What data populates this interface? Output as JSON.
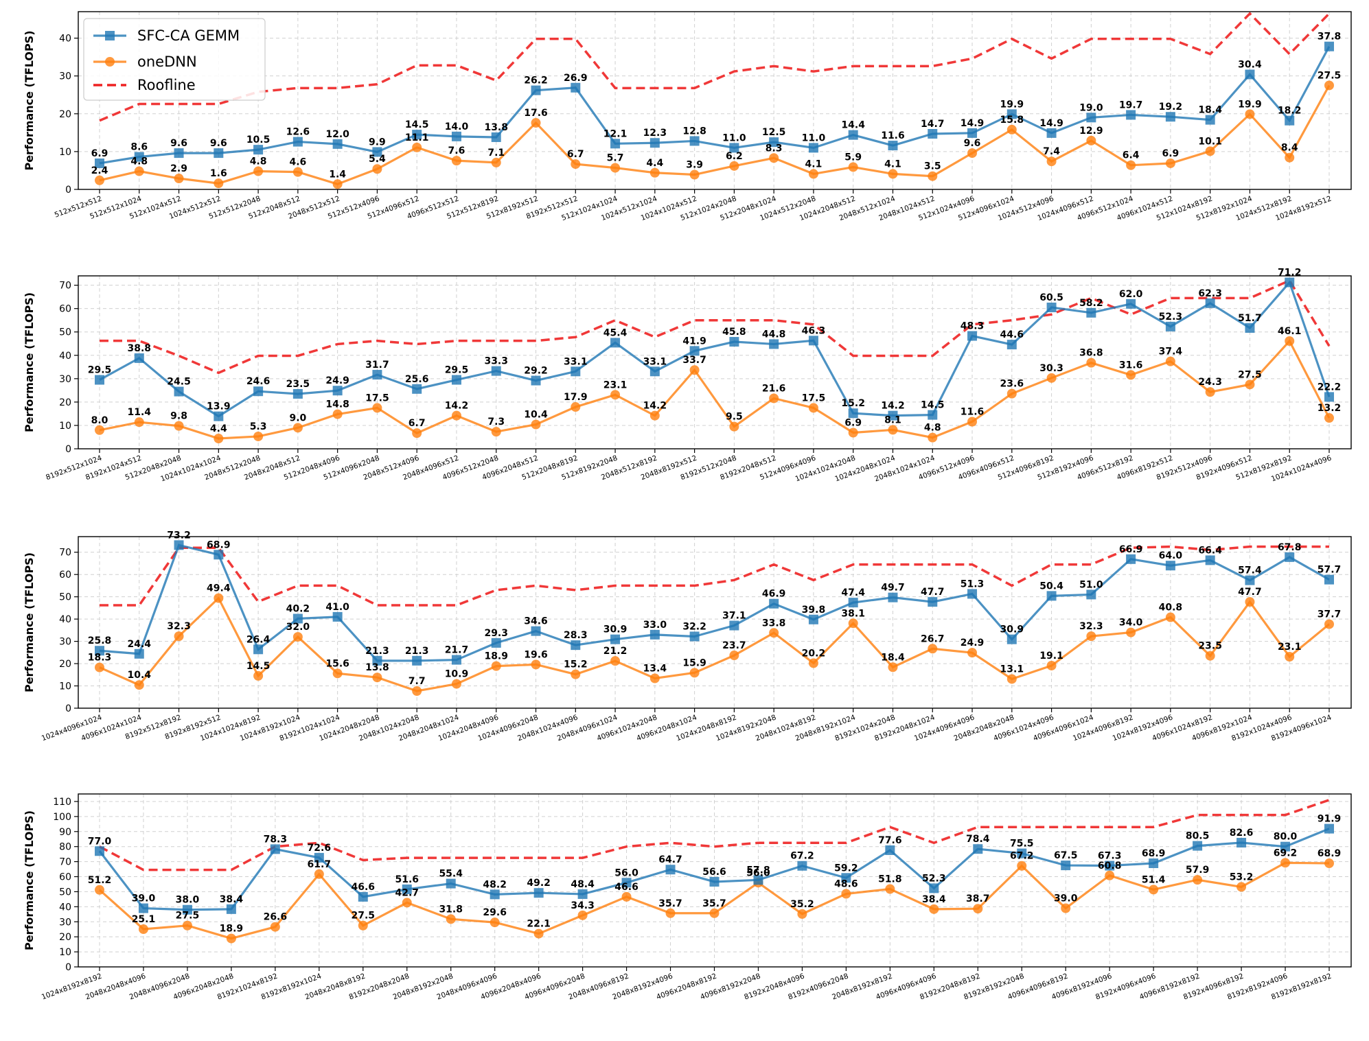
{
  "chart_data": [
    {
      "type": "line",
      "ylabel": "Performance (TFLOPS)",
      "ylim": [
        0,
        47
      ],
      "yticks": [
        0,
        10,
        20,
        30,
        40
      ],
      "grid": true,
      "legend": {
        "position": "top-left",
        "entries": [
          "SFC-CA GEMM",
          "oneDNN",
          "Roofline"
        ]
      },
      "categories": [
        "512x512x512",
        "512x512x1024",
        "512x1024x512",
        "1024x512x512",
        "512x512x2048",
        "512x2048x512",
        "2048x512x512",
        "512x512x4096",
        "512x4096x512",
        "4096x512x512",
        "512x512x8192",
        "512x8192x512",
        "8192x512x512",
        "512x1024x1024",
        "1024x512x1024",
        "1024x1024x512",
        "512x1024x2048",
        "512x2048x1024",
        "1024x512x2048",
        "1024x2048x512",
        "2048x512x1024",
        "2048x1024x512",
        "512x1024x4096",
        "512x4096x1024",
        "1024x512x4096",
        "1024x4096x512",
        "4096x512x1024",
        "4096x1024x512",
        "512x1024x8192",
        "512x8192x1024",
        "1024x512x8192",
        "1024x8192x512"
      ],
      "series": [
        {
          "name": "SFC-CA GEMM",
          "color": "#1f77b4",
          "values": [
            6.9,
            8.6,
            9.6,
            9.6,
            10.5,
            12.6,
            12.0,
            9.9,
            14.5,
            14.0,
            13.8,
            26.2,
            26.9,
            12.1,
            12.3,
            12.8,
            11.0,
            12.5,
            11.0,
            14.4,
            11.6,
            14.7,
            14.9,
            19.9,
            14.9,
            19.0,
            19.7,
            19.2,
            18.4,
            30.4,
            18.2,
            37.8
          ]
        },
        {
          "name": "oneDNN",
          "color": "#ff7f0e",
          "values": [
            2.4,
            4.8,
            2.9,
            1.6,
            4.8,
            4.6,
            1.4,
            5.4,
            11.1,
            7.6,
            7.1,
            17.6,
            6.7,
            5.7,
            4.4,
            3.9,
            6.2,
            8.3,
            4.1,
            5.9,
            4.1,
            3.5,
            9.6,
            15.8,
            7.4,
            12.9,
            6.4,
            6.9,
            10.1,
            19.9,
            8.4,
            27.5
          ]
        },
        {
          "name": "Roofline",
          "color": "#ee2222",
          "values": [
            18.2,
            22.6,
            22.6,
            22.6,
            25.8,
            26.8,
            26.8,
            27.8,
            32.8,
            32.8,
            28.8,
            39.8,
            39.8,
            26.8,
            26.8,
            26.8,
            31.2,
            32.6,
            31.2,
            32.6,
            32.6,
            32.6,
            34.6,
            39.8,
            34.6,
            39.8,
            39.8,
            39.8,
            35.8,
            46.5,
            35.8,
            46.5
          ]
        }
      ]
    },
    {
      "type": "line",
      "ylabel": "Performance (TFLOPS)",
      "ylim": [
        0,
        74
      ],
      "yticks": [
        0,
        10,
        20,
        30,
        40,
        50,
        60,
        70
      ],
      "grid": true,
      "categories": [
        "8192x512x1024",
        "8192x1024x512",
        "512x2048x2048",
        "1024x1024x1024",
        "2048x512x2048",
        "2048x2048x512",
        "512x2048x4096",
        "512x4096x2048",
        "2048x512x4096",
        "2048x4096x512",
        "4096x512x2048",
        "4096x2048x512",
        "512x2048x8192",
        "512x8192x2048",
        "2048x512x8192",
        "2048x8192x512",
        "8192x512x2048",
        "8192x2048x512",
        "512x4096x4096",
        "1024x1024x2048",
        "1024x2048x1024",
        "2048x1024x1024",
        "4096x512x4096",
        "4096x4096x512",
        "512x4096x8192",
        "512x8192x4096",
        "4096x512x8192",
        "4096x8192x512",
        "8192x512x4096",
        "8192x4096x512",
        "512x8192x8192",
        "1024x1024x4096"
      ],
      "series": [
        {
          "name": "SFC-CA GEMM",
          "color": "#1f77b4",
          "values": [
            29.5,
            38.8,
            24.5,
            13.9,
            24.6,
            23.5,
            24.9,
            31.7,
            25.6,
            29.5,
            33.3,
            29.2,
            33.1,
            45.4,
            33.1,
            41.9,
            45.8,
            44.8,
            46.3,
            15.2,
            14.2,
            14.5,
            48.3,
            44.6,
            60.5,
            58.2,
            62.0,
            52.3,
            62.3,
            51.7,
            71.2,
            22.2
          ]
        },
        {
          "name": "oneDNN",
          "color": "#ff7f0e",
          "values": [
            8.0,
            11.4,
            9.8,
            4.4,
            5.3,
            9.0,
            14.8,
            17.5,
            6.7,
            14.2,
            7.3,
            10.4,
            17.9,
            23.1,
            14.2,
            33.7,
            9.5,
            21.6,
            17.5,
            6.9,
            8.1,
            4.8,
            11.6,
            23.6,
            30.3,
            36.8,
            31.6,
            37.4,
            24.3,
            27.5,
            46.1,
            13.2
          ]
        },
        {
          "name": "Roofline",
          "color": "#ee2222",
          "values": [
            46.2,
            46.2,
            39.8,
            32.5,
            39.8,
            39.8,
            44.8,
            46.2,
            44.8,
            46.2,
            46.2,
            46.2,
            47.8,
            55.0,
            47.8,
            55.0,
            55.0,
            55.0,
            53.2,
            39.8,
            39.8,
            39.8,
            53.2,
            55.0,
            57.5,
            64.5,
            57.5,
            64.5,
            64.5,
            64.5,
            72.0,
            44.0
          ]
        }
      ]
    },
    {
      "type": "line",
      "ylabel": "Performance (TFLOPS)",
      "ylim": [
        0,
        77
      ],
      "yticks": [
        0,
        10,
        20,
        30,
        40,
        50,
        60,
        70
      ],
      "grid": true,
      "categories": [
        "1024x4096x1024",
        "4096x1024x1024",
        "8192x512x8192",
        "8192x8192x512",
        "1024x1024x8192",
        "1024x8192x1024",
        "8192x1024x1024",
        "1024x2048x2048",
        "2048x1024x2048",
        "2048x2048x1024",
        "1024x2048x4096",
        "1024x4096x2048",
        "2048x1024x4096",
        "2048x4096x1024",
        "4096x1024x2048",
        "4096x2048x1024",
        "1024x2048x8192",
        "1024x8192x2048",
        "2048x1024x8192",
        "2048x8192x1024",
        "8192x1024x2048",
        "8192x2048x1024",
        "1024x4096x4096",
        "2048x2048x2048",
        "4096x1024x4096",
        "4096x4096x1024",
        "1024x4096x8192",
        "1024x8192x4096",
        "4096x1024x8192",
        "4096x8192x1024",
        "8192x1024x4096",
        "8192x4096x1024"
      ],
      "series": [
        {
          "name": "SFC-CA GEMM",
          "color": "#1f77b4",
          "values": [
            25.8,
            24.4,
            73.2,
            68.9,
            26.4,
            40.2,
            41.0,
            21.3,
            21.3,
            21.7,
            29.3,
            34.6,
            28.3,
            30.9,
            33.0,
            32.2,
            37.1,
            46.9,
            39.8,
            47.4,
            49.7,
            47.7,
            51.3,
            30.9,
            50.4,
            51.0,
            66.9,
            64.0,
            66.4,
            57.4,
            67.8,
            57.7
          ]
        },
        {
          "name": "oneDNN",
          "color": "#ff7f0e",
          "values": [
            18.3,
            10.4,
            32.3,
            49.4,
            14.5,
            32.0,
            15.6,
            13.8,
            7.7,
            10.9,
            18.9,
            19.6,
            15.2,
            21.2,
            13.4,
            15.9,
            23.7,
            33.8,
            20.2,
            38.1,
            18.4,
            26.7,
            24.9,
            13.1,
            19.1,
            32.3,
            34.0,
            40.8,
            23.5,
            47.7,
            23.1,
            37.7
          ]
        },
        {
          "name": "Roofline",
          "color": "#ee2222",
          "values": [
            46.2,
            46.2,
            72.0,
            72.0,
            47.8,
            55.0,
            55.0,
            46.2,
            46.2,
            46.2,
            53.0,
            55.0,
            53.0,
            55.0,
            55.0,
            55.0,
            57.5,
            64.5,
            57.5,
            64.5,
            64.5,
            64.5,
            64.5,
            55.0,
            64.5,
            64.5,
            72.0,
            72.5,
            71.0,
            72.5,
            72.5,
            72.5
          ]
        }
      ]
    },
    {
      "type": "line",
      "ylabel": "Performance (TFLOPS)",
      "ylim": [
        0,
        115
      ],
      "yticks": [
        0,
        10,
        20,
        30,
        40,
        50,
        60,
        70,
        80,
        90,
        100,
        110
      ],
      "grid": true,
      "categories": [
        "1024x8192x8192",
        "2048x2048x4096",
        "2048x4096x2048",
        "4096x2048x2048",
        "8192x1024x8192",
        "8192x8192x1024",
        "2048x2048x8192",
        "8192x2048x2048",
        "2048x8192x2048",
        "2048x4096x4096",
        "4096x2048x4096",
        "4096x4096x2048",
        "2048x4096x8192",
        "2048x8192x4096",
        "4096x2048x8192",
        "4096x8192x2048",
        "8192x2048x4096",
        "8192x4096x2048",
        "2048x8192x8192",
        "4096x4096x4096",
        "8192x2048x8192",
        "8192x8192x2048",
        "4096x4096x8192",
        "4096x8192x4096",
        "8192x4096x4096",
        "4096x8192x8192",
        "8192x4096x8192",
        "8192x8192x4096",
        "8192x8192x8192"
      ],
      "series": [
        {
          "name": "SFC-CA GEMM",
          "color": "#1f77b4",
          "values": [
            77.0,
            39.0,
            38.0,
            38.4,
            78.3,
            72.6,
            46.6,
            51.6,
            55.4,
            48.2,
            49.2,
            48.4,
            56.0,
            64.7,
            56.6,
            57.8,
            67.2,
            59.2,
            77.6,
            52.3,
            78.4,
            75.5,
            67.5,
            67.3,
            68.9,
            80.5,
            82.6,
            80.0,
            91.9
          ]
        },
        {
          "name": "oneDNN",
          "color": "#ff7f0e",
          "values": [
            51.2,
            25.1,
            27.5,
            18.9,
            26.6,
            61.7,
            27.5,
            42.7,
            31.8,
            29.6,
            22.1,
            34.3,
            46.6,
            35.7,
            35.7,
            56.0,
            35.2,
            48.6,
            51.8,
            38.4,
            38.7,
            67.2,
            39.0,
            60.8,
            51.4,
            57.9,
            53.2,
            69.2,
            68.9
          ]
        },
        {
          "name": "Roofline",
          "color": "#ee2222",
          "values": [
            80.0,
            64.5,
            64.5,
            64.5,
            80.0,
            82.5,
            71.0,
            72.5,
            72.5,
            72.5,
            72.5,
            72.5,
            80.0,
            82.5,
            80.0,
            82.5,
            82.5,
            82.5,
            93.0,
            82.5,
            93.0,
            93.0,
            93.0,
            93.0,
            93.0,
            101.0,
            101.0,
            101.0,
            111.0
          ]
        }
      ]
    }
  ]
}
